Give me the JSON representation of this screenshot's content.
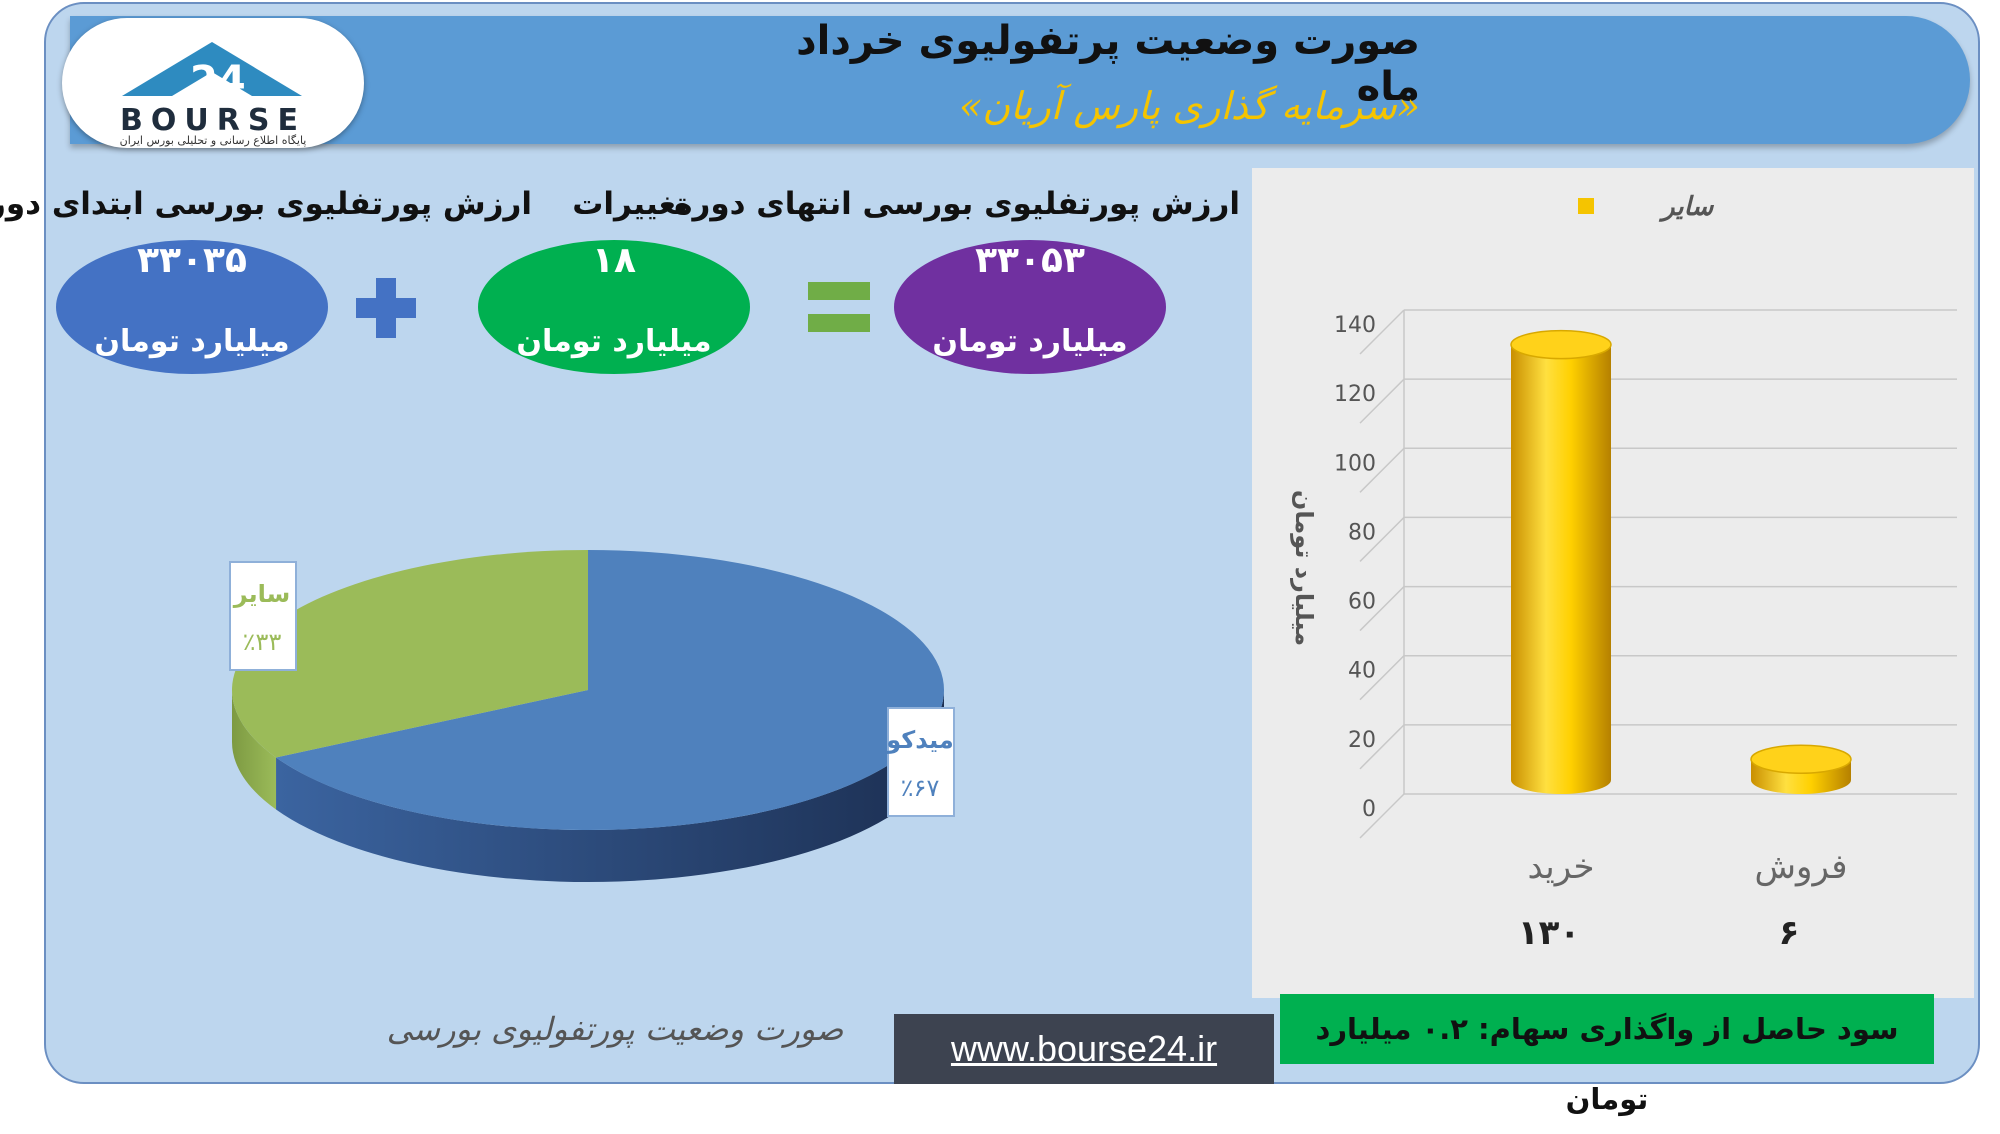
{
  "header": {
    "title": "صورت وضعیت پرتفولیوی خرداد ماه",
    "subtitle": "«سرمایه گذاری پارس آریان»",
    "logo_text": "BOURSE",
    "logo_tagline": "پایگاه اطلاع رسانی و تحلیلی بورس ایران"
  },
  "summary": {
    "start": {
      "label": "ارزش پورتفلیوی بورسی ابتدای دوره",
      "value": "۳۳۰۳۵",
      "unit": "میلیارد تومان",
      "color": "#4472c4"
    },
    "change": {
      "label": "تغییرات",
      "value": "۱۸",
      "unit": "میلیارد تومان",
      "color": "#00b050"
    },
    "end": {
      "label": "ارزش پورتفلیوی بورسی انتهای دوره",
      "value": "۳۳۰۵۳",
      "unit": "میلیارد تومان",
      "color": "#7030a0"
    },
    "plus_color": "#4472c4",
    "equals_color": "#70ad47"
  },
  "pie_caption": "صورت وضعیت پورتفولیوی بورسی",
  "website": "www.bourse24.ir",
  "profit_note": "سود حاصل از واگذاری سهام: ۰.۲ میلیارد تومان",
  "chart_data": [
    {
      "type": "pie",
      "slices": [
        {
          "label": "میدکو",
          "value": 67,
          "value_label": "٪۶۷",
          "color": "#4f81bd"
        },
        {
          "label": "سایر",
          "value": 33,
          "value_label": "٪۳۳",
          "color": "#9bbb59"
        }
      ]
    },
    {
      "type": "bar",
      "categories": [
        "خرید",
        "فروش"
      ],
      "series": [
        {
          "name": "سایر",
          "values": [
            130,
            6
          ],
          "color": "#f5c400"
        }
      ],
      "value_labels": [
        "۱۳۰",
        "۶"
      ],
      "ylabel": "میلیارد تومان",
      "yticks": [
        0,
        20,
        40,
        60,
        80,
        100,
        120,
        140
      ],
      "ylim": [
        0,
        140
      ],
      "grid": true,
      "legend_position": "top"
    }
  ]
}
